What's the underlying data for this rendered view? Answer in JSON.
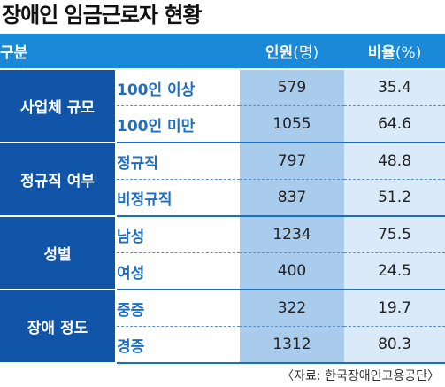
{
  "title": "장애인 임금근로자 현황",
  "header": {
    "category": "구분",
    "people_main": "인원",
    "people_unit": "(명)",
    "ratio_main": "비율",
    "ratio_unit": "(%)"
  },
  "groups": [
    {
      "name": "사업체 규모",
      "rows": [
        {
          "label": "100인 이상",
          "people": "579",
          "ratio": "35.4"
        },
        {
          "label": "100인 미만",
          "people": "1055",
          "ratio": "64.6"
        }
      ]
    },
    {
      "name": "정규직 여부",
      "rows": [
        {
          "label": "정규직",
          "people": "797",
          "ratio": "48.8"
        },
        {
          "label": "비정규직",
          "people": "837",
          "ratio": "51.2"
        }
      ]
    },
    {
      "name": "성별",
      "rows": [
        {
          "label": "남성",
          "people": "1234",
          "ratio": "75.5"
        },
        {
          "label": "여성",
          "people": "400",
          "ratio": "24.5"
        }
      ]
    },
    {
      "name": "장애 정도",
      "rows": [
        {
          "label": "중증",
          "people": "322",
          "ratio": "19.7"
        },
        {
          "label": "경증",
          "people": "1312",
          "ratio": "80.3"
        }
      ]
    }
  ],
  "source": "〈자료: 한국장애인고용공단〉",
  "chart_data": {
    "type": "table",
    "title": "장애인 임금근로자 현황",
    "columns": [
      "구분",
      "인원(명)",
      "비율(%)"
    ],
    "rows": [
      [
        "사업체 규모",
        "100인 이상",
        579,
        35.4
      ],
      [
        "사업체 규모",
        "100인 미만",
        1055,
        64.6
      ],
      [
        "정규직 여부",
        "정규직",
        797,
        48.8
      ],
      [
        "정규직 여부",
        "비정규직",
        837,
        51.2
      ],
      [
        "성별",
        "남성",
        1234,
        75.5
      ],
      [
        "성별",
        "여성",
        400,
        24.5
      ],
      [
        "장애 정도",
        "중증",
        322,
        19.7
      ],
      [
        "장애 정도",
        "경증",
        1312,
        80.3
      ]
    ],
    "colors": {
      "header": "#1a8ad8",
      "group": "#1155a8",
      "people_col": "#a9cbec",
      "ratio_col": "#daeaf8",
      "sub_text": "#1e6fc2"
    }
  }
}
